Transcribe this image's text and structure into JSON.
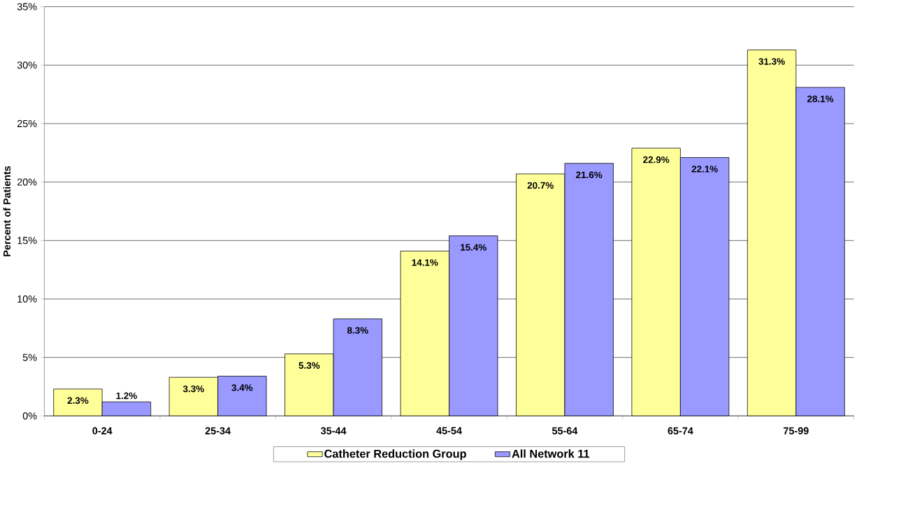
{
  "chart_data": {
    "type": "bar",
    "ylabel": "Percent of Patients",
    "categories": [
      "0-24",
      "25-34",
      "35-44",
      "45-54",
      "55-64",
      "65-74",
      "75-99"
    ],
    "series": [
      {
        "name": "Catheter Reduction Group",
        "color": "#ffff99",
        "values": [
          2.3,
          3.3,
          5.3,
          14.1,
          20.7,
          22.9,
          31.3
        ],
        "value_labels": [
          "2.3%",
          "3.3%",
          "5.3%",
          "14.1%",
          "20.7%",
          "22.9%",
          "31.3%"
        ]
      },
      {
        "name": "All Network 11",
        "color": "#9999ff",
        "values": [
          1.2,
          3.4,
          8.3,
          15.4,
          21.6,
          22.1,
          28.1
        ],
        "value_labels": [
          "1.2%",
          "3.4%",
          "8.3%",
          "15.4%",
          "21.6%",
          "22.1%",
          "28.1%"
        ]
      }
    ],
    "ylim": [
      0,
      35
    ],
    "yticks": [
      {
        "value": 0,
        "label": "0%"
      },
      {
        "value": 5,
        "label": "5%"
      },
      {
        "value": 10,
        "label": "10%"
      },
      {
        "value": 15,
        "label": "15%"
      },
      {
        "value": 20,
        "label": "20%"
      },
      {
        "value": 25,
        "label": "25%"
      },
      {
        "value": 30,
        "label": "30%"
      },
      {
        "value": 35,
        "label": "35%"
      }
    ],
    "grid": "y",
    "legend": "bottom"
  }
}
